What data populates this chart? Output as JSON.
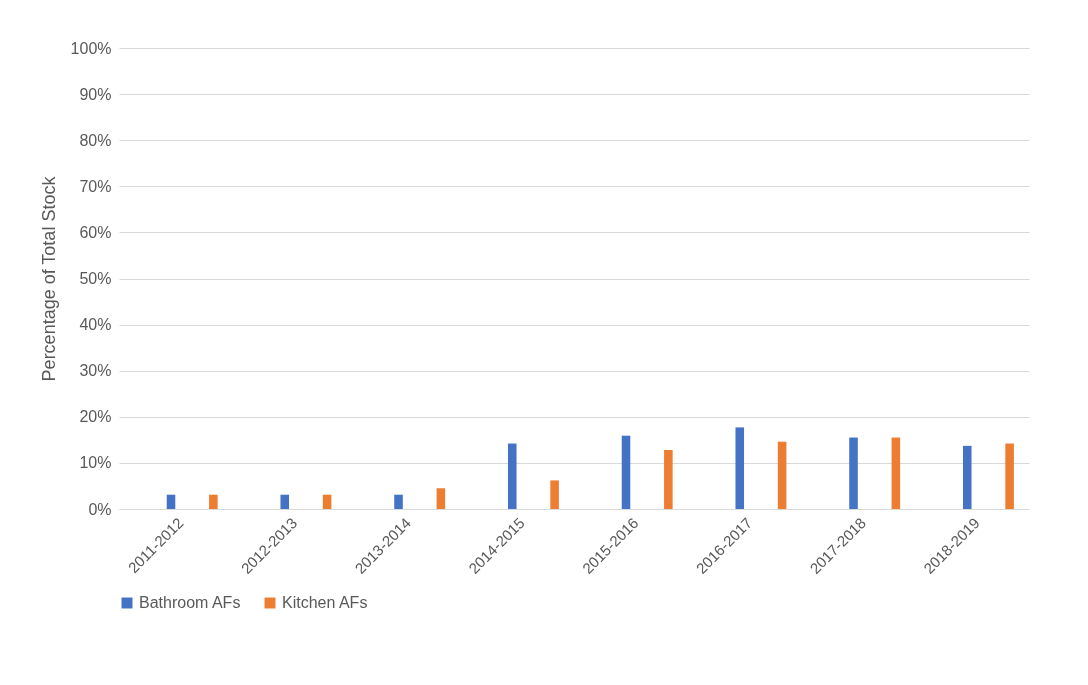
{
  "chart_data": {
    "type": "bar",
    "ylabel": "Percentage of Total Stock",
    "categories": [
      "2011-2012",
      "2012-2013",
      "2013-2014",
      "2014-2015",
      "2015-2016",
      "2016-2017",
      "2017-2018",
      "2018-2019"
    ],
    "series": [
      {
        "name": "Bathroom AFs",
        "color": "#4472c4",
        "values": [
          3.1,
          3.1,
          3.1,
          14.2,
          15.9,
          17.7,
          15.5,
          13.7
        ]
      },
      {
        "name": "Kitchen AFs",
        "color": "#ed7d31",
        "values": [
          3.1,
          3.1,
          4.5,
          6.2,
          12.8,
          14.6,
          15.5,
          14.2
        ]
      }
    ],
    "ylim": [
      0,
      100
    ],
    "yticks": [
      {
        "value": 0,
        "label": "0%"
      },
      {
        "value": 10,
        "label": "10%"
      },
      {
        "value": 20,
        "label": "20%"
      },
      {
        "value": 30,
        "label": "30%"
      },
      {
        "value": 40,
        "label": "40%"
      },
      {
        "value": 50,
        "label": "50%"
      },
      {
        "value": 60,
        "label": "60%"
      },
      {
        "value": 70,
        "label": "70%"
      },
      {
        "value": 80,
        "label": "80%"
      },
      {
        "value": 90,
        "label": "90%"
      },
      {
        "value": 100,
        "label": "100%"
      }
    ],
    "grid": "y",
    "legend": "bottom"
  }
}
